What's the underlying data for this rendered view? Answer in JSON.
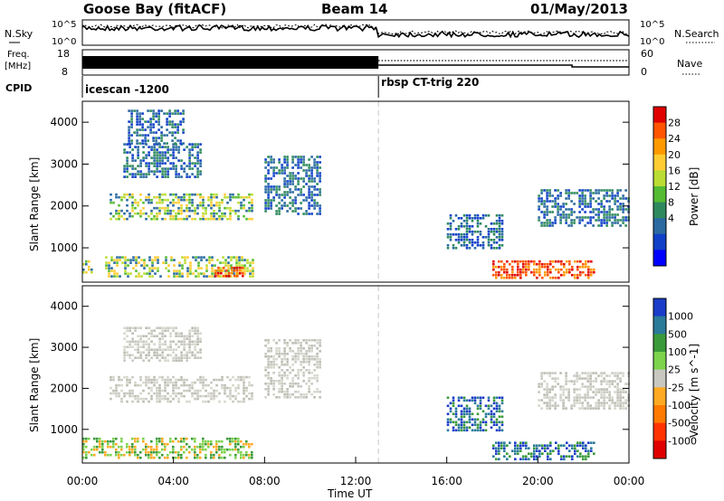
{
  "header": {
    "station": "Goose Bay (fitACF)",
    "beam": "Beam 14",
    "date": "01/May/2013"
  },
  "top_panels": {
    "nsky_label": "N.Sky",
    "nsky_ticks": [
      "10^5",
      "10^0"
    ],
    "nsearch_label": "N.Search",
    "nsearch_ticks": [
      "10^5",
      "10^0"
    ],
    "freq_label_1": "Freq.",
    "freq_label_2": "[MHz]",
    "freq_ticks": [
      "18",
      "8"
    ],
    "nave_label": "Nave",
    "nave_ticks": [
      "60",
      "0"
    ],
    "cpid_label": "CPID",
    "cpid_segments": [
      {
        "name": "icescan -1200",
        "start_hour": 0,
        "end_hour": 13
      },
      {
        "name": "rbsp CT-trig 220",
        "start_hour": 13,
        "end_hour": 24
      }
    ]
  },
  "axes": {
    "x_label": "Time UT",
    "x_ticks": [
      "00:00",
      "04:00",
      "08:00",
      "12:00",
      "16:00",
      "20:00",
      "00:00"
    ],
    "x_range_hours": [
      0,
      24
    ],
    "y_label": "Slant Range [km]",
    "y_ticks": [
      "4000",
      "3000",
      "2000",
      "1000"
    ],
    "y_range_km": [
      180,
      4500
    ]
  },
  "chart_data": [
    {
      "type": "heatmap",
      "title": "Power",
      "ylabel": "Slant Range [km]",
      "xlabel": "Time UT",
      "colorbar": {
        "label": "Power [dB]",
        "ticks": [
          "28",
          "24",
          "20",
          "16",
          "12",
          "8",
          "4"
        ],
        "colors": [
          "#e00000",
          "#ff5500",
          "#ff9900",
          "#ffcc33",
          "#bbdd33",
          "#55bb33",
          "#2e8a5e",
          "#2a6aa0",
          "#1040c8",
          "#0000ff"
        ]
      },
      "regions": [
        {
          "t": [
            0.0,
            0.5
          ],
          "r": [
            400,
            700
          ],
          "level": "mid"
        },
        {
          "t": [
            1.0,
            7.5
          ],
          "r": [
            300,
            800
          ],
          "level": "mid"
        },
        {
          "t": [
            5.8,
            7.0
          ],
          "r": [
            350,
            550
          ],
          "level": "high"
        },
        {
          "t": [
            1.2,
            7.5
          ],
          "r": [
            1700,
            2300
          ],
          "level": "mid"
        },
        {
          "t": [
            1.8,
            5.2
          ],
          "r": [
            2700,
            3500
          ],
          "level": "low"
        },
        {
          "t": [
            2.0,
            4.5
          ],
          "r": [
            3500,
            4300
          ],
          "level": "low"
        },
        {
          "t": [
            8.0,
            10.5
          ],
          "r": [
            1800,
            3200
          ],
          "level": "low"
        },
        {
          "t": [
            16.0,
            18.5
          ],
          "r": [
            1000,
            1800
          ],
          "level": "low"
        },
        {
          "t": [
            18.0,
            22.5
          ],
          "r": [
            300,
            700
          ],
          "level": "high"
        },
        {
          "t": [
            20.0,
            24.0
          ],
          "r": [
            1500,
            2400
          ],
          "level": "low"
        }
      ]
    },
    {
      "type": "heatmap",
      "title": "Velocity",
      "ylabel": "Slant Range [km]",
      "xlabel": "Time UT",
      "colorbar": {
        "label": "Velocity [m s^-1]",
        "ticks": [
          "1000",
          "500",
          "100",
          "25",
          "-25",
          "-100",
          "-500",
          "-1000"
        ],
        "colors": [
          "#1a3cc8",
          "#2a7a9a",
          "#3a9a3a",
          "#7dd34c",
          "#c8c8c0",
          "#ffaa22",
          "#ff7a00",
          "#ff3300",
          "#e00000"
        ]
      },
      "regions": [
        {
          "t": [
            0.0,
            7.5
          ],
          "r": [
            300,
            800
          ],
          "level": "green"
        },
        {
          "t": [
            1.2,
            7.5
          ],
          "r": [
            1700,
            2300
          ],
          "level": "grey"
        },
        {
          "t": [
            1.8,
            5.2
          ],
          "r": [
            2700,
            3500
          ],
          "level": "grey"
        },
        {
          "t": [
            8.0,
            10.5
          ],
          "r": [
            1800,
            3200
          ],
          "level": "grey"
        },
        {
          "t": [
            16.0,
            18.5
          ],
          "r": [
            1000,
            1800
          ],
          "level": "blue"
        },
        {
          "t": [
            18.0,
            22.5
          ],
          "r": [
            300,
            700
          ],
          "level": "blue"
        },
        {
          "t": [
            20.0,
            24.0
          ],
          "r": [
            1500,
            2400
          ],
          "level": "grey"
        }
      ]
    }
  ]
}
